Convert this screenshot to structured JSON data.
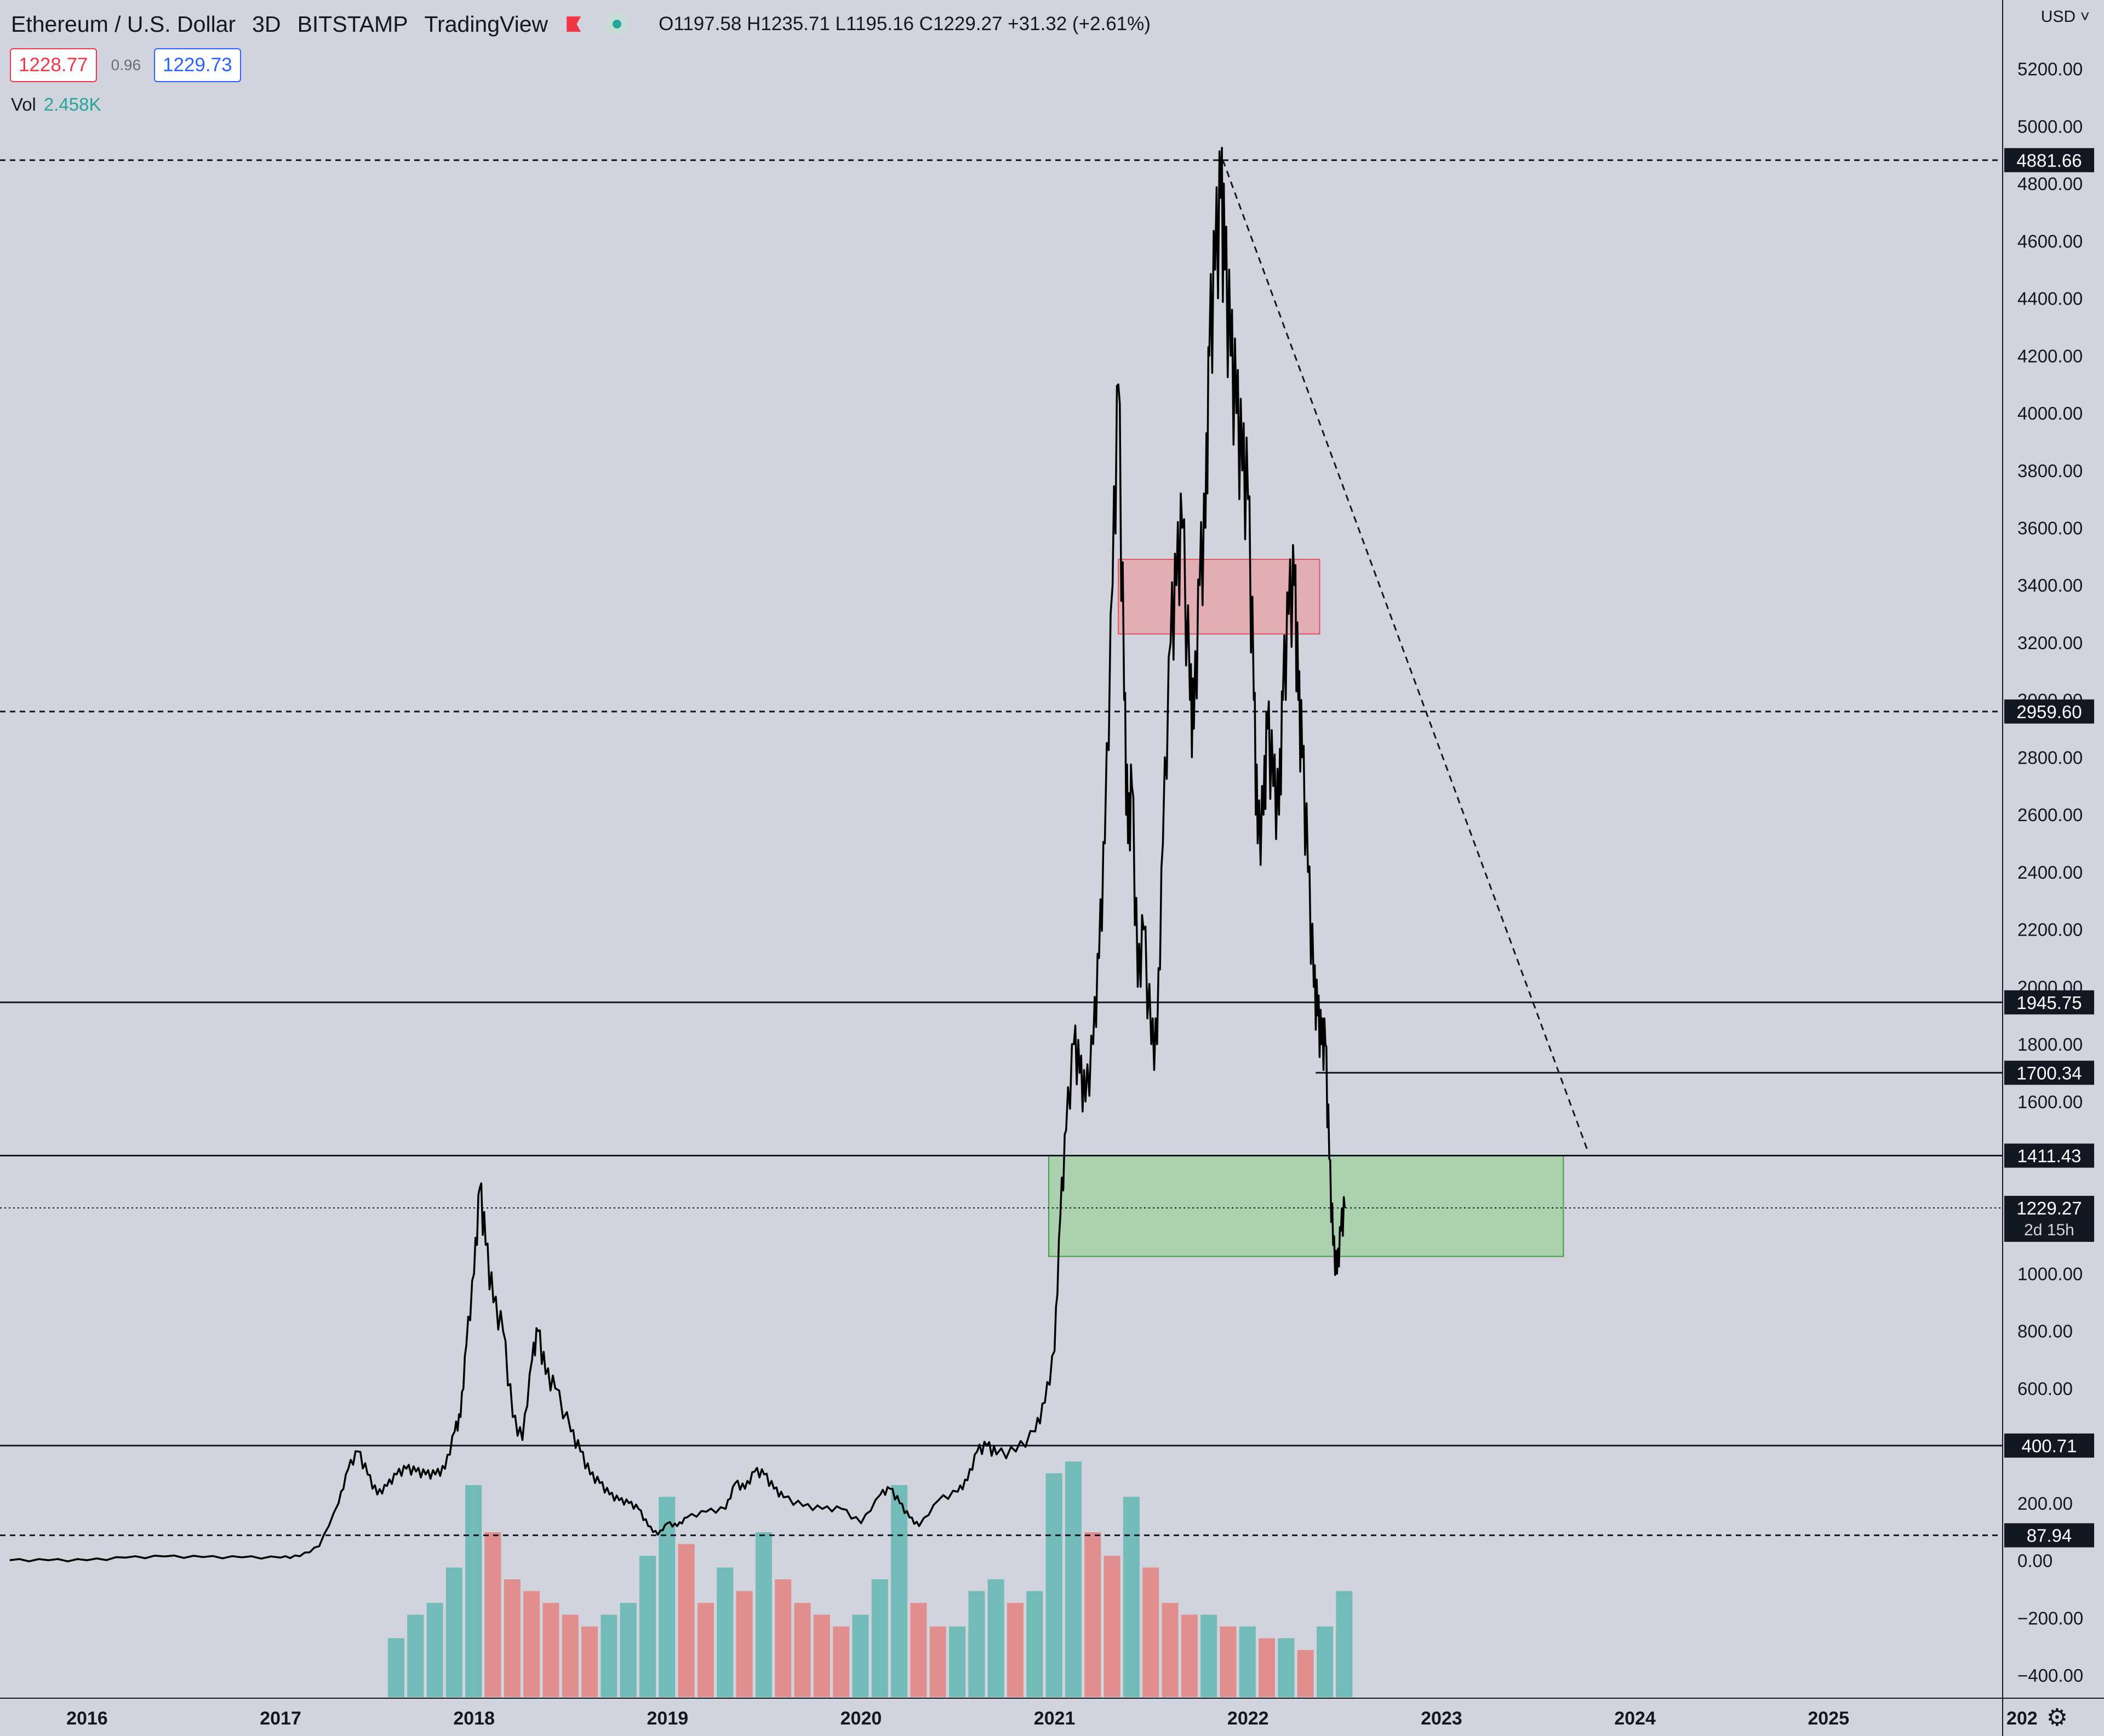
{
  "header": {
    "symbol": "Ethereum / U.S. Dollar",
    "interval": "3D",
    "exchange": "BITSTAMP",
    "brand": "TradingView",
    "ohlc": "O1197.58  H1235.71  L1195.16  C1229.27  +31.32 (+2.61%)"
  },
  "trade": {
    "sell_price": "1228.77",
    "spread": "0.96",
    "buy_price": "1229.73"
  },
  "volume": {
    "label": "Vol",
    "value": "2.458K"
  },
  "currency": {
    "label": "USD ˅"
  },
  "settings_icon": "gear-icon",
  "colors": {
    "background": "#d1d4dc",
    "up": "#26a69a",
    "down": "#ef5350",
    "price_line": "#000000",
    "resistance_zone": "#e5a7ad",
    "support_zone": "#a3cfa6"
  },
  "chart_data": {
    "type": "line",
    "title": "Ethereum / U.S. Dollar",
    "y_axis_position": "right",
    "ylim": [
      -480,
      5440
    ],
    "x_range": [
      2015.55,
      2025.9
    ],
    "x_ticks": [
      "2016",
      "2017",
      "2018",
      "2019",
      "2020",
      "2021",
      "2022",
      "2023",
      "2024",
      "2025",
      "202"
    ],
    "y_ticks": [
      "5200.00",
      "5000.00",
      "4800.00",
      "4600.00",
      "4400.00",
      "4200.00",
      "4000.00",
      "3800.00",
      "3600.00",
      "3400.00",
      "3200.00",
      "3000.00",
      "2800.00",
      "2600.00",
      "2400.00",
      "2200.00",
      "2000.00",
      "1800.00",
      "1600.00",
      "1400.00",
      "1200.00",
      "1000.00",
      "800.00",
      "600.00",
      "400.00",
      "200.00",
      "0.00",
      "−200.00",
      "−400.00"
    ],
    "series": [
      {
        "x": [
          2015.6,
          2015.8,
          2016.0,
          2016.2,
          2016.4,
          2016.6,
          2016.8,
          2017.0,
          2017.1,
          2017.2,
          2017.3,
          2017.35,
          2017.4,
          2017.45,
          2017.5,
          2017.55,
          2017.6,
          2017.65,
          2017.7,
          2017.75,
          2017.8,
          2017.85,
          2017.9,
          2017.93,
          2017.96,
          2018.0,
          2018.03,
          2018.06,
          2018.1,
          2018.15,
          2018.2,
          2018.25,
          2018.3,
          2018.33,
          2018.37,
          2018.42,
          2018.5,
          2018.55,
          2018.6,
          2018.65,
          2018.7,
          2018.75,
          2018.8,
          2018.85,
          2018.9,
          2018.95,
          2019.0,
          2019.05,
          2019.1,
          2019.2,
          2019.3,
          2019.35,
          2019.4,
          2019.45,
          2019.5,
          2019.55,
          2019.6,
          2019.7,
          2019.8,
          2019.9,
          2020.0,
          2020.1,
          2020.15,
          2020.2,
          2020.25,
          2020.3,
          2020.4,
          2020.5,
          2020.55,
          2020.6,
          2020.65,
          2020.7,
          2020.8,
          2020.9,
          2020.95,
          2021.0,
          2021.03,
          2021.06,
          2021.1,
          2021.13,
          2021.16,
          2021.2,
          2021.23,
          2021.26,
          2021.3,
          2021.33,
          2021.36,
          2021.38,
          2021.4,
          2021.43,
          2021.46,
          2021.5,
          2021.53,
          2021.56,
          2021.6,
          2021.63,
          2021.66,
          2021.7,
          2021.72,
          2021.75,
          2021.78,
          2021.8,
          2021.83,
          2021.86,
          2021.88,
          2021.91,
          2021.94,
          2021.97,
          2022.0,
          2022.03,
          2022.05,
          2022.08,
          2022.1,
          2022.13,
          2022.16,
          2022.18,
          2022.21,
          2022.24,
          2022.26,
          2022.28,
          2022.31,
          2022.34,
          2022.36,
          2022.38,
          2022.4,
          2022.42,
          2022.44,
          2022.46,
          2022.48,
          2022.5
        ],
        "y": [
          1,
          1,
          1,
          10,
          14,
          12,
          11,
          10,
          15,
          50,
          200,
          320,
          380,
          300,
          230,
          260,
          300,
          320,
          310,
          300,
          300,
          320,
          450,
          500,
          750,
          1000,
          1300,
          1100,
          900,
          800,
          500,
          420,
          700,
          800,
          650,
          600,
          450,
          380,
          300,
          270,
          230,
          210,
          200,
          180,
          120,
          90,
          130,
          120,
          150,
          170,
          180,
          270,
          250,
          310,
          300,
          250,
          220,
          190,
          180,
          180,
          130,
          230,
          250,
          200,
          150,
          120,
          210,
          240,
          280,
          380,
          400,
          370,
          380,
          450,
          550,
          730,
          1200,
          1500,
          1800,
          1700,
          1600,
          1800,
          2100,
          2500,
          3400,
          4100,
          3000,
          2500,
          2700,
          2000,
          2200,
          1800,
          1800,
          2500,
          3200,
          3400,
          3600,
          3000,
          2900,
          3400,
          3600,
          4200,
          4500,
          4750,
          4500,
          4200,
          4000,
          3800,
          3700,
          3000,
          2500,
          2600,
          2900,
          2700,
          2600,
          3000,
          3300,
          3400,
          3000,
          2800,
          2400,
          2000,
          1900,
          1800,
          1800,
          1400,
          1100,
          1000,
          1150,
          1229
        ]
      }
    ],
    "volume_bars": {
      "note": "approximate normalized volume (0-1)",
      "x": [
        2017.6,
        2017.7,
        2017.8,
        2017.9,
        2018.0,
        2018.1,
        2018.2,
        2018.3,
        2018.4,
        2018.5,
        2018.6,
        2018.7,
        2018.8,
        2018.9,
        2019.0,
        2019.1,
        2019.2,
        2019.3,
        2019.4,
        2019.5,
        2019.6,
        2019.7,
        2019.8,
        2019.9,
        2020.0,
        2020.1,
        2020.2,
        2020.3,
        2020.4,
        2020.5,
        2020.6,
        2020.7,
        2020.8,
        2020.9,
        2021.0,
        2021.1,
        2021.2,
        2021.3,
        2021.4,
        2021.5,
        2021.6,
        2021.7,
        2021.8,
        2021.9,
        2022.0,
        2022.1,
        2022.2,
        2022.3,
        2022.4,
        2022.5
      ],
      "values": [
        0.25,
        0.35,
        0.4,
        0.55,
        0.9,
        0.7,
        0.5,
        0.45,
        0.4,
        0.35,
        0.3,
        0.35,
        0.4,
        0.6,
        0.85,
        0.65,
        0.4,
        0.55,
        0.45,
        0.7,
        0.5,
        0.4,
        0.35,
        0.3,
        0.35,
        0.5,
        0.9,
        0.4,
        0.3,
        0.3,
        0.45,
        0.5,
        0.4,
        0.45,
        0.95,
        1.0,
        0.7,
        0.6,
        0.85,
        0.55,
        0.4,
        0.35,
        0.35,
        0.3,
        0.3,
        0.25,
        0.25,
        0.2,
        0.3,
        0.45
      ]
    },
    "annotations": {
      "horizontal_lines": [
        {
          "value": 4881.66,
          "label": "4881.66",
          "style": "dashed"
        },
        {
          "value": 2959.6,
          "label": "2959.60",
          "style": "dashed"
        },
        {
          "value": 1945.75,
          "label": "1945.75",
          "style": "solid"
        },
        {
          "value": 1700.34,
          "label": "1700.34",
          "style": "solid",
          "from_x": 2022.35
        },
        {
          "value": 1411.43,
          "label": "1411.43",
          "style": "solid"
        },
        {
          "value": 400.71,
          "label": "400.71",
          "style": "solid"
        },
        {
          "value": 87.94,
          "label": "87.94",
          "style": "dashed"
        }
      ],
      "current_price": {
        "value": 1229.27,
        "label": "1229.27",
        "countdown": "2d 15h"
      },
      "trend_line": {
        "from": [
          2021.87,
          4881.66
        ],
        "to": [
          2023.76,
          1420
        ],
        "style": "dashed"
      },
      "zones": [
        {
          "name": "resistance",
          "x": [
            2021.33,
            2022.37
          ],
          "y": [
            3230,
            3490
          ],
          "color": "#e5a7ad"
        },
        {
          "name": "support",
          "x": [
            2020.97,
            2023.63
          ],
          "y": [
            1060,
            1411.43
          ],
          "color": "#a3cfa6"
        }
      ]
    }
  }
}
